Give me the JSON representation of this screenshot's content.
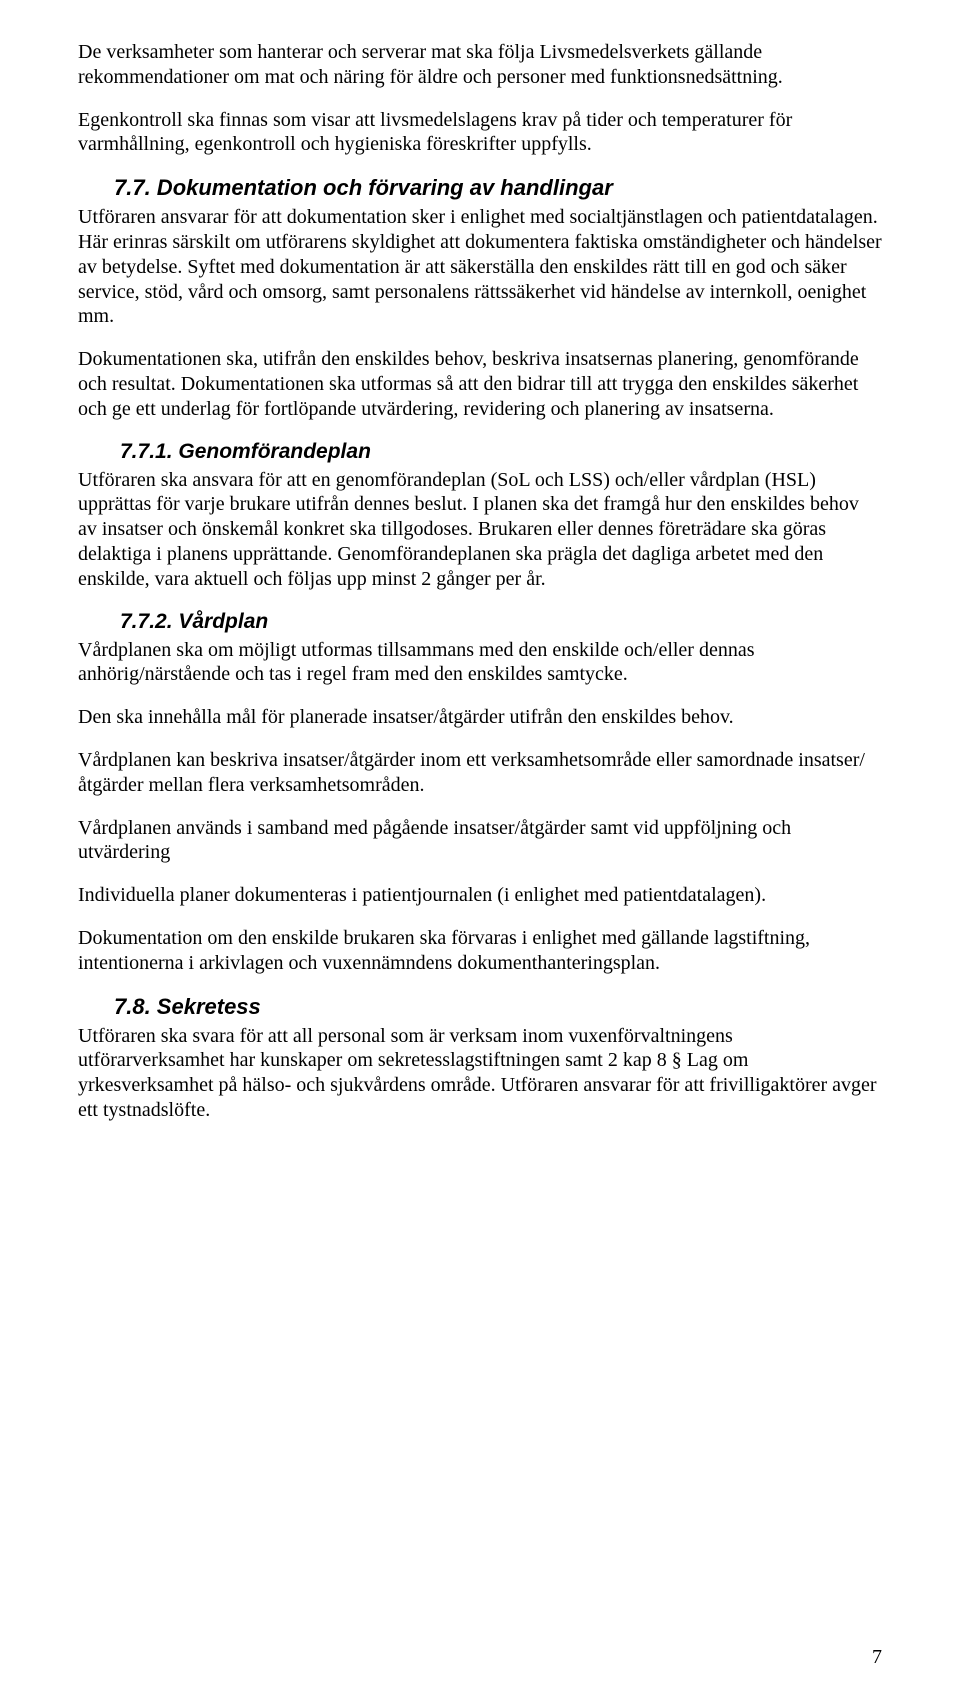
{
  "p1": "De verksamheter som hanterar och serverar mat ska följa Livsmedelsverkets gällande rekommendationer om mat och näring för äldre och personer med funktionsnedsättning.",
  "p2": "Egenkontroll ska finnas som visar att livsmedelslagens krav på tider och temperaturer för varmhållning, egenkontroll och hygieniska föreskrifter uppfylls.",
  "h77": "7.7. Dokumentation och förvaring av handlingar",
  "p3": "Utföraren ansvarar för att dokumentation sker i enlighet med socialtjänstlagen och patientdatalagen. Här erinras särskilt om utförarens skyldighet att dokumentera faktiska omständigheter och händelser av betydelse. Syftet med dokumentation är att säkerställa den enskildes rätt till en god och säker service, stöd, vård och omsorg, samt personalens rättssäkerhet vid händelse av internkoll, oenighet mm.",
  "p4": "Dokumentationen ska, utifrån den enskildes behov, beskriva insatsernas planering, genomförande och resultat. Dokumentationen ska utformas så att den bidrar till att trygga den enskildes säkerhet och ge ett underlag för fortlöpande utvärdering, revidering och planering av insatserna.",
  "h771": "7.7.1. Genomförandeplan",
  "p5": "Utföraren ska ansvara för att en genomförandeplan (SoL och LSS) och/eller vårdplan (HSL) upprättas för varje brukare utifrån dennes beslut. I planen ska det framgå hur den enskildes behov av insatser och önskemål konkret ska tillgodoses. Brukaren eller dennes företrädare ska göras delaktiga i planens upprättande. Genomförandeplanen ska prägla det dagliga arbetet med den enskilde, vara aktuell och följas upp minst 2 gånger per år.",
  "h772": "7.7.2. Vårdplan",
  "p6": "Vårdplanen ska om möjligt utformas tillsammans med den enskilde och/eller dennas anhörig/närstående och tas i regel fram med den enskildes samtycke.",
  "p7": "Den ska innehålla mål för planerade insatser/åtgärder utifrån den enskildes behov.",
  "p8": "Vårdplanen kan beskriva insatser/åtgärder inom ett verksamhetsområde eller samordnade insatser/åtgärder mellan flera verksamhetsområden.",
  "p9": "Vårdplanen används i samband med pågående insatser/åtgärder samt vid uppföljning och utvärdering",
  "p10": "Individuella planer dokumenteras i patientjournalen (i enlighet med patientdatalagen).",
  "p11": "Dokumentation om den enskilde brukaren ska förvaras i enlighet med gällande lagstiftning, intentionerna i arkivlagen och vuxennämndens dokumenthanteringsplan.",
  "h78": "7.8. Sekretess",
  "p12": "Utföraren ska svara för att all personal som är verksam inom vuxenförvaltningens utförarverksamhet har kunskaper om sekretesslagstiftningen samt 2 kap 8 § Lag om yrkesverksamhet på hälso- och sjukvårdens område. Utföraren ansvarar för att frivilligaktörer avger ett tystnadslöfte.",
  "page_number": "7"
}
